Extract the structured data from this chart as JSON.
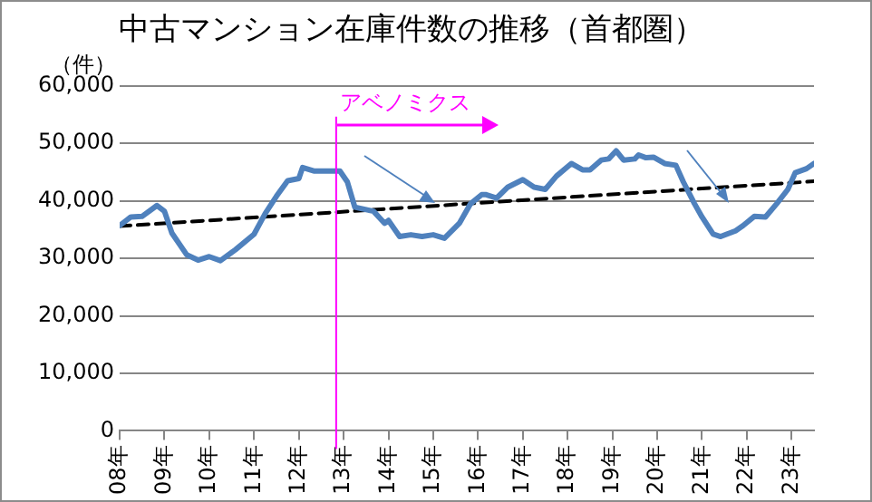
{
  "chart_data": {
    "type": "line",
    "title": "中古マンション在庫件数の推移（首都圏）",
    "ylabel": "（件）",
    "xlim": [
      "2008-01",
      "2023-07"
    ],
    "xticks": [
      {
        "value": "2008",
        "label": "08年"
      },
      {
        "value": "2009",
        "label": "09年"
      },
      {
        "value": "2010",
        "label": "10年"
      },
      {
        "value": "2011",
        "label": "11年"
      },
      {
        "value": "2012",
        "label": "12年"
      },
      {
        "value": "2013",
        "label": "13年"
      },
      {
        "value": "2014",
        "label": "14年"
      },
      {
        "value": "2015",
        "label": "15年"
      },
      {
        "value": "2016",
        "label": "16年"
      },
      {
        "value": "2017",
        "label": "17年"
      },
      {
        "value": "2018",
        "label": "18年"
      },
      {
        "value": "2019",
        "label": "19年"
      },
      {
        "value": "2020",
        "label": "20年"
      },
      {
        "value": "2021",
        "label": "21年"
      },
      {
        "value": "2022",
        "label": "22年"
      },
      {
        "value": "2023",
        "label": "23年"
      }
    ],
    "ylim": [
      0,
      60000
    ],
    "yticks": [
      {
        "value": 0,
        "label": "0"
      },
      {
        "value": 10000,
        "label": "10,000"
      },
      {
        "value": 20000,
        "label": "20,000"
      },
      {
        "value": 30000,
        "label": "30,000"
      },
      {
        "value": 40000,
        "label": "40,000"
      },
      {
        "value": 50000,
        "label": "50,000"
      },
      {
        "value": 60000,
        "label": "60,000"
      }
    ],
    "grid": "y",
    "legend": false,
    "marker": "none",
    "series": [
      {
        "color": "#4f81bd",
        "line_style": "solid",
        "x": [
          "2008-01",
          "2008-04",
          "2008-07",
          "2008-11",
          "2009-01",
          "2009-03",
          "2009-07",
          "2009-10",
          "2010-01",
          "2010-04",
          "2010-08",
          "2011-01",
          "2011-04",
          "2011-07",
          "2011-10",
          "2012-01",
          "2012-02",
          "2012-05",
          "2012-12",
          "2013-02",
          "2013-04",
          "2013-09",
          "2013-12",
          "2014-01",
          "2014-04",
          "2014-07",
          "2014-10",
          "2015-01",
          "2015-04",
          "2015-08",
          "2015-11",
          "2016-02",
          "2016-03",
          "2016-06",
          "2016-09",
          "2017-01",
          "2017-04",
          "2017-07",
          "2017-10",
          "2018-02",
          "2018-05",
          "2018-07",
          "2018-10",
          "2018-12",
          "2019-02",
          "2019-04",
          "2019-07",
          "2019-08",
          "2019-10",
          "2019-12",
          "2020-03",
          "2020-06",
          "2020-08",
          "2020-11",
          "2021-01",
          "2021-04",
          "2021-06",
          "2021-10",
          "2021-12",
          "2022-03",
          "2022-06",
          "2022-09",
          "2022-12",
          "2023-02",
          "2023-05",
          "2023-07"
        ],
        "values": [
          35700,
          37200,
          37300,
          39200,
          38200,
          34400,
          30600,
          29700,
          30300,
          29600,
          31500,
          34200,
          37800,
          40800,
          43500,
          43900,
          45800,
          45200,
          45200,
          43300,
          38900,
          38200,
          36100,
          36600,
          33800,
          34100,
          33800,
          34100,
          33500,
          36100,
          39500,
          41100,
          41100,
          40500,
          42400,
          43700,
          42400,
          42000,
          44300,
          46500,
          45400,
          45400,
          47100,
          47300,
          48700,
          47100,
          47300,
          48000,
          47500,
          47600,
          46500,
          46200,
          43300,
          39500,
          37200,
          34200,
          33800,
          34800,
          35700,
          37300,
          37200,
          39500,
          42000,
          44900,
          45600,
          46500
        ]
      },
      {
        "color": "#000000",
        "line_style": "dashed",
        "x": [
          "2008-01",
          "2023-07"
        ],
        "values": [
          35600,
          43400
        ]
      }
    ],
    "ref_lines": [
      {
        "axis": "x",
        "value": "2012-11",
        "label": "アベノミクス",
        "color": "#ff00ff"
      }
    ]
  }
}
